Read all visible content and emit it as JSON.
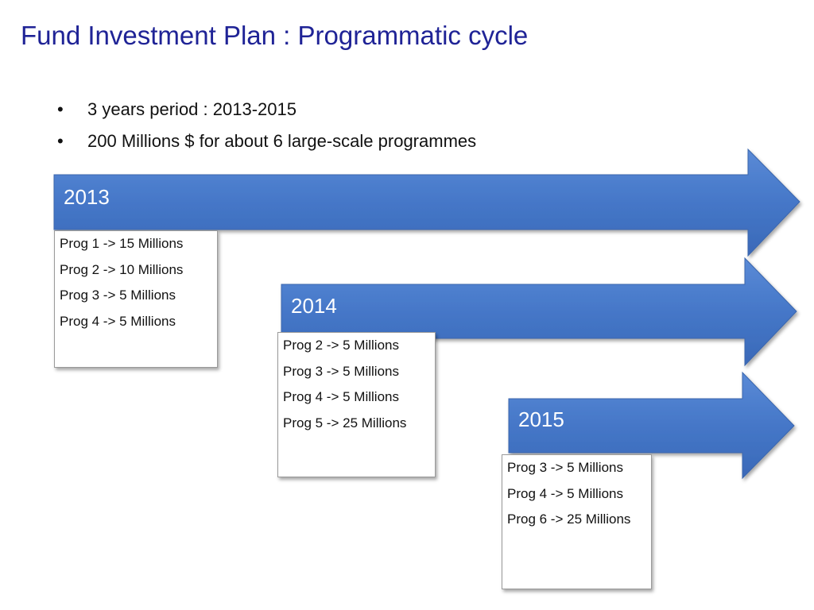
{
  "title": "Fund Investment Plan : Programmatic cycle",
  "bullets": [
    "3 years period : 2013-2015",
    "200 Millions $ for about 6 large-scale programmes"
  ],
  "bullet_glyph": "•",
  "colors": {
    "title": "#1f2396",
    "arrow_fill": "#4577c8",
    "arrow_stroke": "#3a66ad"
  },
  "years": [
    {
      "label": "2013",
      "programmes": [
        "Prog 1 -> 15 Millions",
        "Prog 2 -> 10 Millions",
        "Prog 3 -> 5 Millions",
        "Prog 4 -> 5 Millions"
      ]
    },
    {
      "label": "2014",
      "programmes": [
        "Prog 2 -> 5 Millions",
        "Prog 3 -> 5 Millions",
        "Prog 4 -> 5 Millions",
        "Prog 5 -> 25 Millions"
      ]
    },
    {
      "label": "2015",
      "programmes": [
        "Prog 3 -> 5 Millions",
        "Prog 4 -> 5 Millions",
        "Prog 6 -> 25 Millions"
      ]
    }
  ]
}
